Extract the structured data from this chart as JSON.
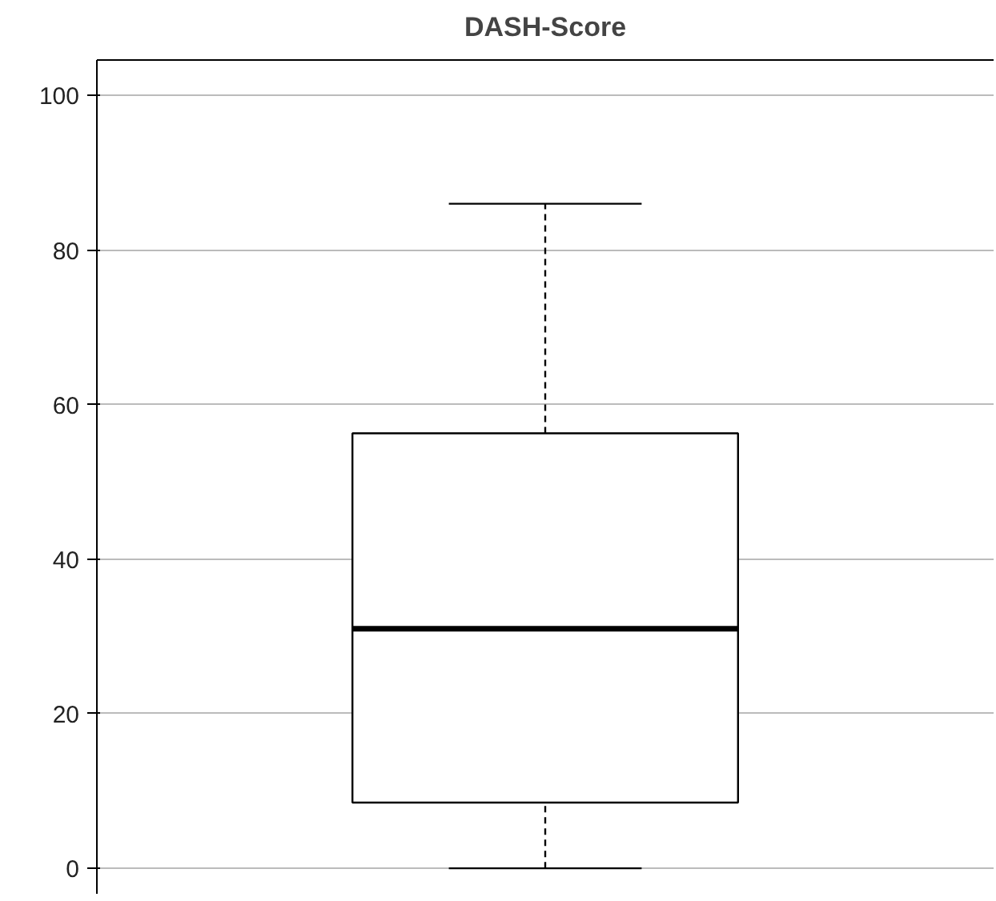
{
  "chart_data": {
    "type": "box",
    "title": "DASH-Score",
    "categories": [
      null
    ],
    "boxes": [
      {
        "low": 0,
        "q1": 8.5,
        "median": 31,
        "q3": 56.3,
        "high": 86
      }
    ],
    "ylim": [
      -3.3,
      104.6
    ],
    "yticks": [
      0,
      20,
      40,
      60,
      80,
      100
    ],
    "grid": "y",
    "tick_labels": "y"
  }
}
